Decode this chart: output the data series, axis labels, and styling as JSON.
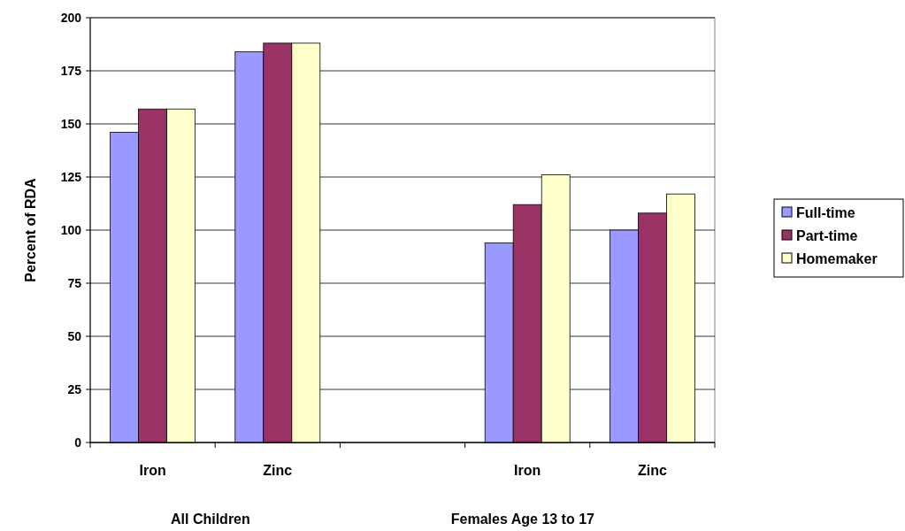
{
  "chart_data": {
    "type": "bar",
    "ylabel": "Percent of RDA",
    "categories": [
      "Iron",
      "Zinc",
      null,
      "Iron",
      "Zinc"
    ],
    "series": [
      {
        "name": "Full-time",
        "color": "#9999ff",
        "values": [
          146,
          184,
          null,
          94,
          100
        ]
      },
      {
        "name": "Part-time",
        "color": "#993366",
        "values": [
          157,
          188,
          null,
          112,
          108
        ]
      },
      {
        "name": "Homemaker",
        "color": "#ffffcc",
        "values": [
          157,
          188,
          null,
          126,
          117
        ]
      }
    ],
    "annotations": [
      "All Children",
      "Females Age 13 to 17"
    ],
    "ylim": [
      0,
      200
    ],
    "yticks": [
      0,
      25,
      50,
      75,
      100,
      125,
      150,
      175,
      200
    ],
    "grid": "y",
    "legend": "right"
  }
}
